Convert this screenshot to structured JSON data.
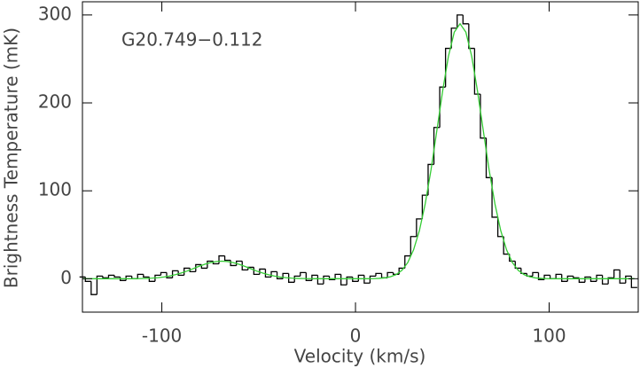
{
  "chart_data": {
    "type": "line",
    "xlabel": "Velocity (km/s)",
    "ylabel": "Brightness Temperature (mK)",
    "annotation": "G20.749−0.112",
    "xlim": [
      -141,
      146
    ],
    "ylim": [
      -38,
      315
    ],
    "xticks": [
      -100,
      0,
      100
    ],
    "yticks": [
      0,
      100,
      200,
      300
    ],
    "x": [
      -141,
      -138,
      -135,
      -132,
      -129,
      -126,
      -123,
      -120,
      -117,
      -114,
      -111,
      -108,
      -105,
      -102,
      -99,
      -96,
      -93,
      -90,
      -87,
      -84,
      -81,
      -78,
      -75,
      -72,
      -69,
      -66,
      -63,
      -60,
      -57,
      -54,
      -51,
      -48,
      -45,
      -42,
      -39,
      -36,
      -33,
      -30,
      -27,
      -24,
      -21,
      -18,
      -15,
      -12,
      -9,
      -6,
      -3,
      0,
      3,
      6,
      9,
      12,
      15,
      18,
      21,
      24,
      27,
      30,
      33,
      36,
      39,
      42,
      45,
      48,
      51,
      54,
      57,
      60,
      63,
      66,
      69,
      72,
      75,
      78,
      81,
      84,
      87,
      90,
      93,
      96,
      99,
      102,
      105,
      108,
      111,
      114,
      117,
      120,
      123,
      126,
      129,
      132,
      135,
      138,
      141,
      144
    ],
    "series": [
      {
        "color": "#000000",
        "drawstyle": "steps-mid",
        "values": [
          2,
          -3,
          -18,
          3,
          1,
          4,
          2,
          -2,
          3,
          0,
          5,
          2,
          -3,
          4,
          7,
          1,
          9,
          4,
          12,
          8,
          16,
          12,
          20,
          17,
          26,
          21,
          15,
          20,
          10,
          13,
          5,
          11,
          2,
          8,
          0,
          6,
          -4,
          3,
          7,
          -2,
          4,
          -6,
          3,
          -1,
          5,
          -7,
          2,
          -3,
          4,
          -5,
          3,
          6,
          1,
          7,
          5,
          12,
          26,
          48,
          68,
          95,
          130,
          172,
          218,
          262,
          285,
          300,
          290,
          262,
          210,
          160,
          115,
          70,
          48,
          28,
          20,
          12,
          6,
          3,
          7,
          -1,
          4,
          0,
          5,
          -3,
          3,
          1,
          -4,
          2,
          -3,
          4,
          -6,
          1,
          10,
          -5,
          3,
          -10
        ]
      },
      {
        "color": "#33cc33",
        "drawstyle": "default",
        "values": [
          0,
          0,
          0,
          0,
          0,
          0,
          0,
          0,
          0,
          0,
          0.2,
          0.4,
          0.7,
          1.2,
          2.0,
          3.1,
          4.6,
          6.5,
          8.7,
          11.3,
          13.9,
          16.3,
          18.2,
          19.5,
          20,
          19.5,
          18.2,
          16.3,
          13.9,
          11.3,
          8.7,
          6.5,
          4.6,
          3.1,
          2.0,
          1.2,
          0.7,
          0.4,
          0.2,
          0.1,
          0,
          0,
          0,
          0,
          0,
          0,
          0,
          0,
          0,
          0,
          0.1,
          0.4,
          0.9,
          2.2,
          4.7,
          9.6,
          18.4,
          32.9,
          54.7,
          85.2,
          123.8,
          168.3,
          213.5,
          253.1,
          280.4,
          290,
          280.4,
          253.1,
          213.5,
          168.3,
          123.8,
          85.2,
          54.7,
          32.9,
          18.4,
          9.6,
          4.7,
          2.2,
          0.9,
          0.4,
          0.1,
          0,
          0,
          0,
          0,
          0,
          0,
          0,
          0,
          0,
          0,
          0,
          0,
          0,
          0,
          0
        ]
      }
    ]
  }
}
